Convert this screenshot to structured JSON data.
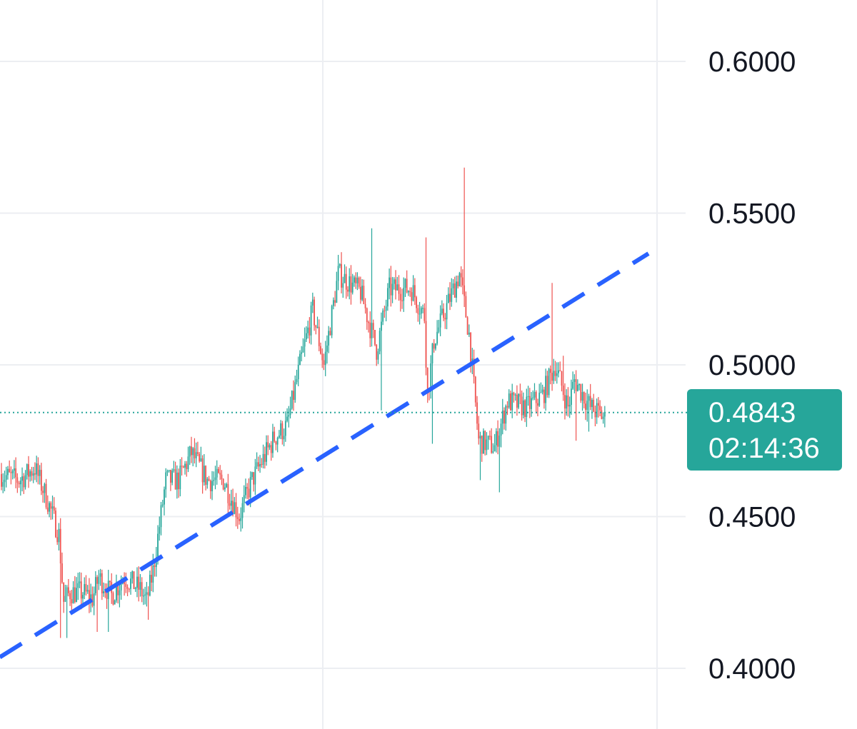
{
  "chart_data": {
    "type": "candlestick",
    "y_axis": {
      "ticks": [
        "0.6000",
        "0.5500",
        "0.5000",
        "0.4500",
        "0.4000"
      ],
      "tick_values": [
        0.6,
        0.55,
        0.5,
        0.45,
        0.4
      ],
      "range": [
        0.379,
        0.62
      ]
    },
    "last_price": {
      "value": 0.4843,
      "label": "0.4843",
      "countdown": "02:14:36"
    },
    "trendline": {
      "style": "dashed",
      "points": [
        {
          "index": 0,
          "price": 0.404
        },
        {
          "index": 249,
          "price": 0.4855
        }
      ]
    },
    "colors": {
      "up": "#26a69a",
      "down": "#ef5350",
      "trendline": "#2962ff",
      "last_price_badge": "#26a69a",
      "grid": "#eceef2",
      "axis_text": "#131722"
    },
    "grid": true,
    "anchors": [
      [
        0,
        0.464
      ],
      [
        12,
        0.462
      ],
      [
        22,
        0.466
      ],
      [
        30,
        0.455
      ],
      [
        37,
        0.444
      ],
      [
        40,
        0.422
      ],
      [
        44,
        0.425
      ],
      [
        52,
        0.425
      ],
      [
        58,
        0.423
      ],
      [
        62,
        0.43
      ],
      [
        70,
        0.424
      ],
      [
        78,
        0.43
      ],
      [
        88,
        0.426
      ],
      [
        92,
        0.422
      ],
      [
        96,
        0.432
      ],
      [
        104,
        0.462
      ],
      [
        112,
        0.462
      ],
      [
        120,
        0.471
      ],
      [
        130,
        0.462
      ],
      [
        140,
        0.462
      ],
      [
        150,
        0.45
      ],
      [
        158,
        0.462
      ],
      [
        172,
        0.476
      ],
      [
        180,
        0.48
      ],
      [
        188,
        0.5
      ],
      [
        196,
        0.518
      ],
      [
        203,
        0.5
      ],
      [
        212,
        0.53
      ],
      [
        226,
        0.524
      ],
      [
        236,
        0.505
      ],
      [
        244,
        0.525
      ],
      [
        258,
        0.525
      ],
      [
        266,
        0.516
      ],
      [
        268,
        0.49
      ],
      [
        272,
        0.508
      ],
      [
        282,
        0.522
      ],
      [
        288,
        0.53
      ],
      [
        294,
        0.51
      ],
      [
        300,
        0.475
      ],
      [
        310,
        0.473
      ],
      [
        318,
        0.488
      ],
      [
        330,
        0.486
      ],
      [
        340,
        0.49
      ],
      [
        348,
        0.5
      ],
      [
        356,
        0.486
      ],
      [
        360,
        0.495
      ],
      [
        370,
        0.486
      ],
      [
        378,
        0.483
      ]
    ],
    "spikes": [
      [
        37,
        0.41
      ],
      [
        41,
        0.41
      ],
      [
        60,
        0.412
      ],
      [
        67,
        0.412
      ],
      [
        92,
        0.416
      ],
      [
        228,
        0.522
      ],
      [
        232,
        0.545
      ],
      [
        238,
        0.485
      ],
      [
        266,
        0.542
      ],
      [
        270,
        0.474
      ],
      [
        290,
        0.565
      ],
      [
        300,
        0.462
      ],
      [
        312,
        0.458
      ],
      [
        345,
        0.527
      ],
      [
        352,
        0.503
      ],
      [
        360,
        0.475
      ],
      [
        368,
        0.478
      ]
    ]
  }
}
